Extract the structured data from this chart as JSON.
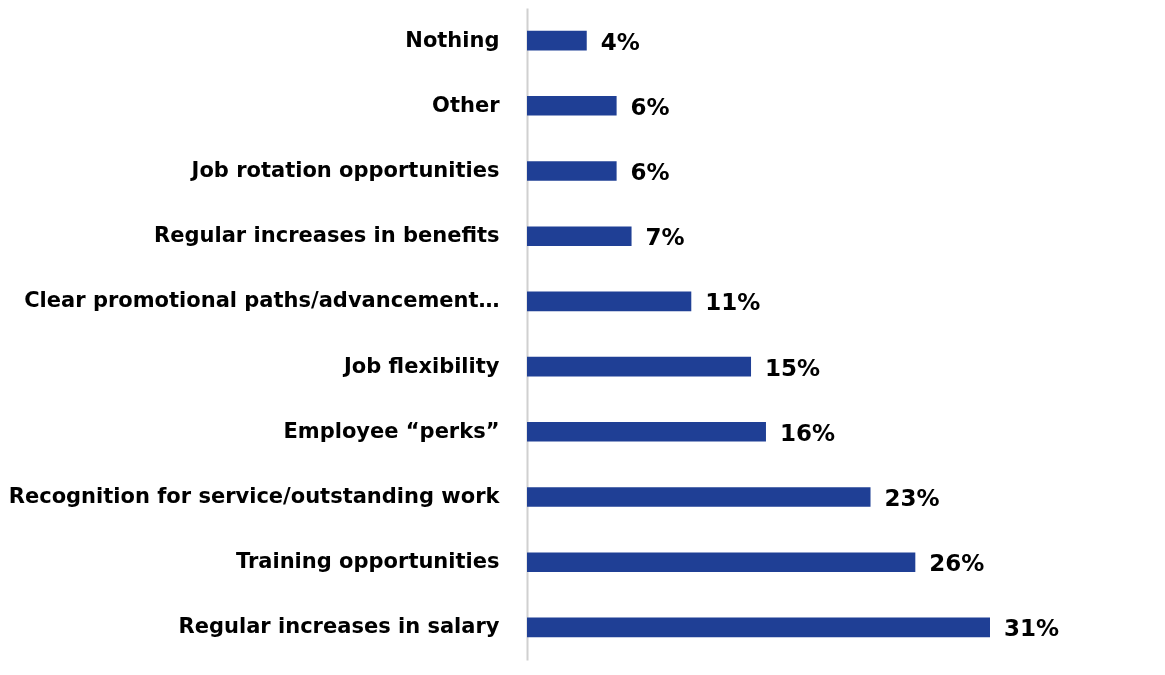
{
  "chart_data": {
    "type": "bar",
    "orientation": "horizontal",
    "categories": [
      "Nothing",
      "Other",
      "Job rotation opportunities",
      "Regular increases in benefits",
      "Clear promotional paths/advancement…",
      "Job flexibility",
      "Employee “perks”",
      "Recognition for service/outstanding work",
      "Training opportunities",
      "Regular increases in salary"
    ],
    "values": [
      4,
      6,
      6,
      7,
      11,
      15,
      16,
      23,
      26,
      31
    ],
    "value_labels": [
      "4%",
      "6%",
      "6%",
      "7%",
      "11%",
      "15%",
      "16%",
      "23%",
      "26%",
      "31%"
    ],
    "color": "#1f3f95",
    "tick_labels": "y"
  }
}
